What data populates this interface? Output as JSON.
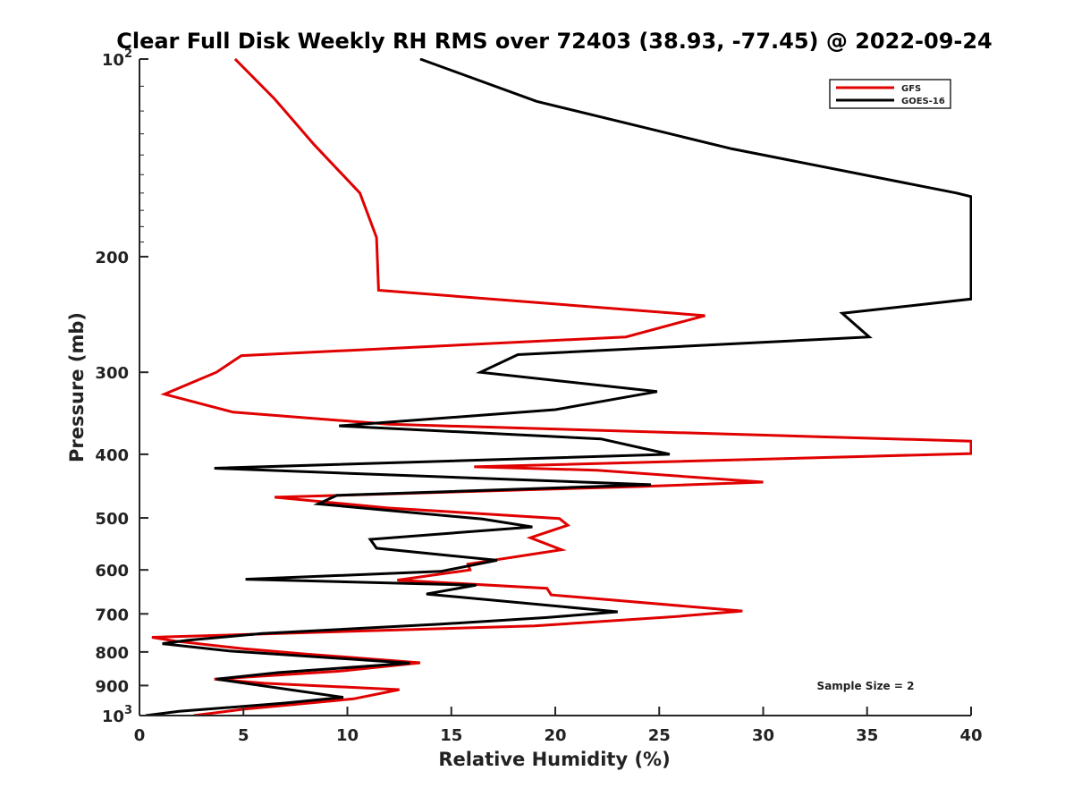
{
  "chart_data": {
    "type": "line",
    "title": "Clear Full Disk Weekly RH RMS over 72403 (38.93, -77.45) @ 2022-09-24",
    "xlabel": "Relative Humidity (%)",
    "ylabel": "Pressure (mb)",
    "xlim": [
      0,
      40
    ],
    "ylim": [
      1000,
      100
    ],
    "yscale": "log",
    "x_ticks": [
      "0",
      "5",
      "10",
      "15",
      "20",
      "25",
      "30",
      "35",
      "40"
    ],
    "y_ticks": [
      {
        "value": 100,
        "base": "10",
        "exp": "2"
      },
      {
        "value": 200,
        "label": "200"
      },
      {
        "value": 300,
        "label": "300"
      },
      {
        "value": 400,
        "label": "400"
      },
      {
        "value": 500,
        "label": "500"
      },
      {
        "value": 600,
        "label": "600"
      },
      {
        "value": 700,
        "label": "700"
      },
      {
        "value": 800,
        "label": "800"
      },
      {
        "value": 900,
        "label": "900"
      },
      {
        "value": 1000,
        "base": "10",
        "exp": "3"
      }
    ],
    "legend_position": "top-right",
    "annotation": "Sample Size = 2",
    "series": [
      {
        "name": "GFS",
        "color": "#e00000",
        "points": [
          [
            4.6,
            100
          ],
          [
            6.5,
            115
          ],
          [
            8.4,
            135
          ],
          [
            10.6,
            160
          ],
          [
            11.4,
            187
          ],
          [
            11.5,
            225
          ],
          [
            27.2,
            246
          ],
          [
            23.4,
            265
          ],
          [
            4.9,
            283
          ],
          [
            3.7,
            300
          ],
          [
            1.2,
            324
          ],
          [
            4.5,
            345
          ],
          [
            12.0,
            360
          ],
          [
            40.0,
            382
          ],
          [
            40.0,
            399
          ],
          [
            16.1,
            418
          ],
          [
            22.0,
            423
          ],
          [
            30.0,
            441
          ],
          [
            24.0,
            448
          ],
          [
            6.5,
            465
          ],
          [
            12.0,
            483
          ],
          [
            20.2,
            501
          ],
          [
            20.6,
            513
          ],
          [
            18.8,
            536
          ],
          [
            20.3,
            559
          ],
          [
            15.8,
            588
          ],
          [
            15.9,
            600
          ],
          [
            12.4,
            622
          ],
          [
            19.6,
            640
          ],
          [
            19.8,
            655
          ],
          [
            29.0,
            693
          ],
          [
            25.7,
            707
          ],
          [
            19.0,
            730
          ],
          [
            0.6,
            760
          ],
          [
            1.7,
            770
          ],
          [
            5.0,
            791
          ],
          [
            8.0,
            806
          ],
          [
            13.5,
            831
          ],
          [
            9.6,
            856
          ],
          [
            3.6,
            880
          ],
          [
            6.0,
            893
          ],
          [
            12.5,
            913
          ],
          [
            10.3,
            943
          ],
          [
            5.0,
            978
          ],
          [
            2.6,
            1000
          ]
        ]
      },
      {
        "name": "GOES-16",
        "color": "#000000",
        "points": [
          [
            13.5,
            100
          ],
          [
            19.1,
            116
          ],
          [
            28.5,
            137
          ],
          [
            39.3,
            160
          ],
          [
            40.0,
            162
          ],
          [
            40.0,
            232
          ],
          [
            33.8,
            244
          ],
          [
            35.1,
            265
          ],
          [
            18.2,
            282
          ],
          [
            16.4,
            300
          ],
          [
            24.9,
            321
          ],
          [
            20.0,
            342
          ],
          [
            9.6,
            362
          ],
          [
            22.2,
            379
          ],
          [
            25.5,
            400
          ],
          [
            3.6,
            420
          ],
          [
            24.6,
            445
          ],
          [
            9.5,
            462
          ],
          [
            8.6,
            476
          ],
          [
            16.5,
            502
          ],
          [
            18.9,
            516
          ],
          [
            11.1,
            539
          ],
          [
            11.4,
            556
          ],
          [
            17.2,
            580
          ],
          [
            14.5,
            603
          ],
          [
            5.1,
            620
          ],
          [
            16.2,
            633
          ],
          [
            13.8,
            653
          ],
          [
            23.0,
            695
          ],
          [
            19.6,
            709
          ],
          [
            14.4,
            726
          ],
          [
            5.9,
            750
          ],
          [
            2.3,
            768
          ],
          [
            1.1,
            777
          ],
          [
            4.3,
            797
          ],
          [
            13.0,
            832
          ],
          [
            6.7,
            860
          ],
          [
            3.7,
            880
          ],
          [
            9.8,
            938
          ],
          [
            7.0,
            957
          ],
          [
            5.6,
            965
          ],
          [
            1.9,
            985
          ],
          [
            0.3,
            1000
          ]
        ]
      }
    ]
  }
}
